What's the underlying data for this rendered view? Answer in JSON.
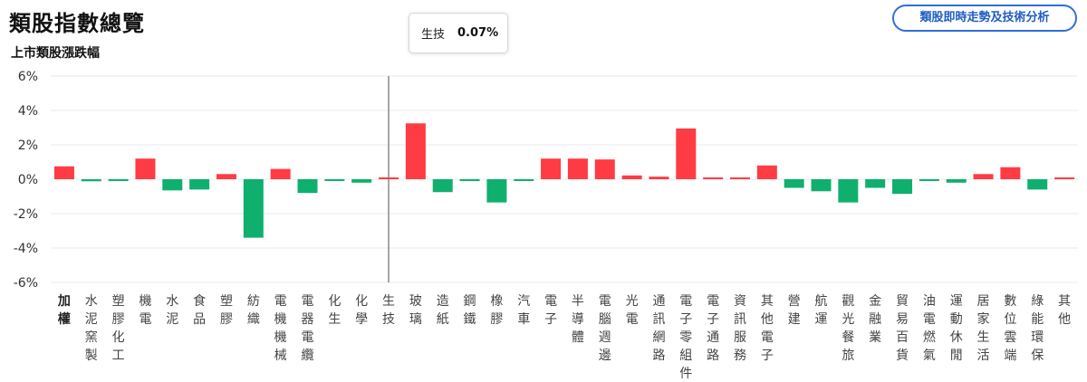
{
  "header": {
    "title": "類股指數總覽",
    "subtitle": "上市類股漲跌幅",
    "action_button": "類股即時走勢及技術分析"
  },
  "tooltip": {
    "name": "生技",
    "value": "0.07%"
  },
  "colors": {
    "up": "#ff3b44",
    "down": "#0fb06d",
    "grid": "#e9e9e9",
    "crosshair": "#8a8a8a",
    "accent": "#2f6fd6"
  },
  "chart_data": {
    "type": "bar",
    "title": "上市類股漲跌幅",
    "ylim": [
      -6,
      6
    ],
    "yticks": [
      6,
      4,
      2,
      0,
      -2,
      -4,
      -6
    ],
    "ytick_labels": [
      "6%",
      "4%",
      "2%",
      "0%",
      "-2%",
      "-4%",
      "-6%"
    ],
    "highlight_index": 12,
    "categories": [
      "加權",
      "水泥窯製",
      "塑膠化工",
      "機電",
      "水泥",
      "食品",
      "塑膠",
      "紡織",
      "電機機械",
      "電器電纜",
      "化生",
      "化學",
      "生技",
      "玻璃",
      "造紙",
      "鋼鐵",
      "橡膠",
      "汽車",
      "電子",
      "半導體",
      "電腦週邊",
      "光電",
      "通訊網路",
      "電子零組件",
      "電子通路",
      "資訊服務",
      "其他電子",
      "營建",
      "航運",
      "觀光餐旅",
      "金融業",
      "貿易百貨",
      "油電燃氣",
      "運動休閒",
      "居家生活",
      "數位雲端",
      "綠能環保",
      "其他"
    ],
    "values": [
      0.75,
      -0.12,
      -0.1,
      1.2,
      -0.65,
      -0.6,
      0.3,
      -3.4,
      0.6,
      -0.8,
      -0.1,
      -0.2,
      0.07,
      3.25,
      -0.75,
      -0.1,
      -1.35,
      -0.1,
      1.2,
      1.2,
      1.15,
      0.22,
      0.15,
      2.95,
      0.1,
      0.1,
      0.8,
      -0.5,
      -0.7,
      -1.35,
      -0.5,
      -0.85,
      -0.1,
      -0.2,
      0.3,
      0.7,
      -0.6,
      0.08
    ]
  }
}
